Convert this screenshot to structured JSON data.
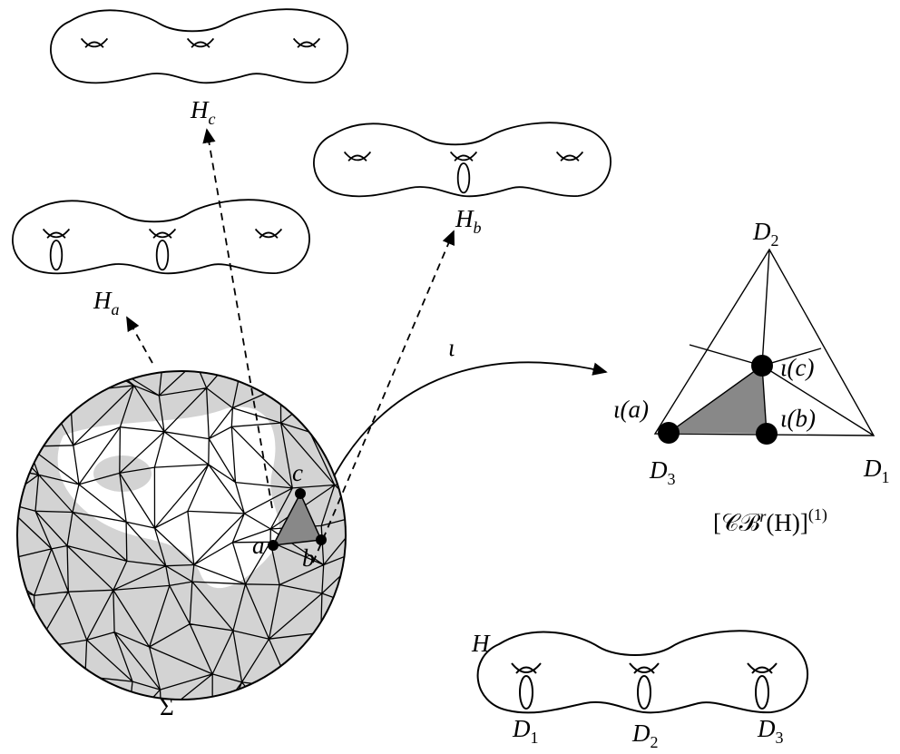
{
  "labels": {
    "h_c": {
      "base": "H",
      "sub": "c"
    },
    "h_b": {
      "base": "H",
      "sub": "b"
    },
    "h_a": {
      "base": "H",
      "sub": "a"
    },
    "iota": "ι",
    "d2_top": {
      "base": "D",
      "sub": "2"
    },
    "iota_c": "ι(c)",
    "iota_a": "ι(a)",
    "iota_b": "ι(b)",
    "d3_left": {
      "base": "D",
      "sub": "3"
    },
    "d1_right": {
      "base": "D",
      "sub": "1"
    },
    "complex": {
      "main": "[𝒞ℬ",
      "sup_r": "r",
      "rest": "(H)]",
      "sup_1": "(1)"
    },
    "c": "c",
    "a": "a",
    "b": "b",
    "sigma": "Σ",
    "h": "H",
    "d1_bottom": {
      "base": "D",
      "sub": "1"
    },
    "d2_bottom": {
      "base": "D",
      "sub": "2"
    },
    "d3_bottom": {
      "base": "D",
      "sub": "3"
    }
  }
}
